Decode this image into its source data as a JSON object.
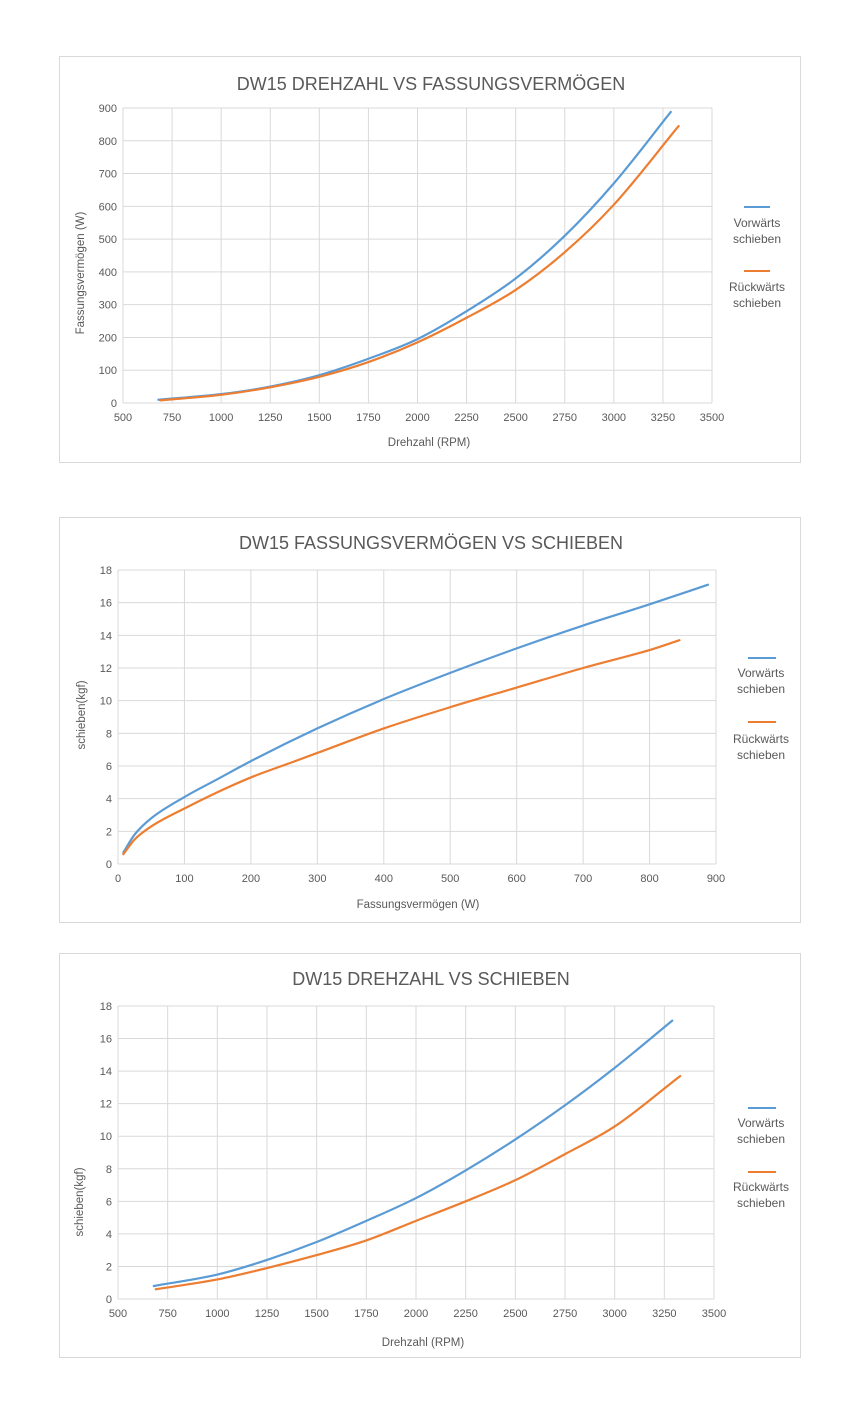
{
  "charts": [
    {
      "title": "DW15 DREHZAHL VS FASSUNGSVERMÖGEN",
      "xlabel": "Drehzahl (RPM)",
      "ylabel": "Fassungsvermögen (W)",
      "legend": [
        {
          "line1": "Vorwärts",
          "line2": "schieben"
        },
        {
          "line1": "Rückwärts",
          "line2": "schieben"
        }
      ]
    },
    {
      "title": "DW15 FASSUNGSVERMÖGEN VS SCHIEBEN",
      "xlabel": "Fassungsvermögen (W)",
      "ylabel": "schieben(kgf)",
      "legend": [
        {
          "line1": "Vorwärts",
          "line2": "schieben"
        },
        {
          "line1": "Rückwärts",
          "line2": "schieben"
        }
      ]
    },
    {
      "title": "DW15 DREHZAHL VS SCHIEBEN",
      "xlabel": "Drehzahl (RPM)",
      "ylabel": "schieben(kgf)",
      "legend": [
        {
          "line1": "Vorwärts",
          "line2": "schieben"
        },
        {
          "line1": "Rückwärts",
          "line2": "schieben"
        }
      ]
    }
  ],
  "chart_data": [
    {
      "type": "line",
      "title": "DW15 DREHZAHL VS FASSUNGSVERMÖGEN",
      "xlabel": "Drehzahl (RPM)",
      "ylabel": "Fassungsvermögen (W)",
      "xlim": [
        500,
        3500
      ],
      "ylim": [
        0,
        900
      ],
      "xticks": [
        500,
        750,
        1000,
        1250,
        1500,
        1750,
        2000,
        2250,
        2500,
        2750,
        3000,
        3250,
        3500
      ],
      "yticks": [
        0,
        100,
        200,
        300,
        400,
        500,
        600,
        700,
        800,
        900
      ],
      "grid": true,
      "legend_position": "right",
      "series": [
        {
          "name": "Vorwärts schieben",
          "color": "#5b9bd5",
          "x": [
            680,
            1000,
            1250,
            1500,
            1750,
            2000,
            2250,
            2500,
            2750,
            3000,
            3290
          ],
          "y": [
            10,
            27,
            50,
            85,
            135,
            195,
            280,
            380,
            510,
            670,
            888
          ]
        },
        {
          "name": "Rückwärts schieben",
          "color": "#ed7d31",
          "x": [
            690,
            1000,
            1250,
            1500,
            1750,
            2000,
            2250,
            2500,
            2750,
            3000,
            3330
          ],
          "y": [
            8,
            25,
            48,
            80,
            125,
            185,
            260,
            345,
            460,
            605,
            845
          ]
        }
      ]
    },
    {
      "type": "line",
      "title": "DW15 FASSUNGSVERMÖGEN VS SCHIEBEN",
      "xlabel": "Fassungsvermögen (W)",
      "ylabel": "schieben(kgf)",
      "xlim": [
        0,
        900
      ],
      "ylim": [
        0,
        18
      ],
      "xticks": [
        0,
        100,
        200,
        300,
        400,
        500,
        600,
        700,
        800,
        900
      ],
      "yticks": [
        0,
        2,
        4,
        6,
        8,
        10,
        12,
        14,
        16,
        18
      ],
      "grid": true,
      "legend_position": "right",
      "series": [
        {
          "name": "Vorwärts schieben",
          "color": "#5b9bd5",
          "x": [
            8,
            25,
            50,
            100,
            150,
            200,
            300,
            400,
            500,
            600,
            700,
            800,
            888
          ],
          "y": [
            0.7,
            1.8,
            2.8,
            4.1,
            5.2,
            6.3,
            8.3,
            10.1,
            11.7,
            13.2,
            14.6,
            15.9,
            17.1
          ]
        },
        {
          "name": "Rückwärts schieben",
          "color": "#ed7d31",
          "x": [
            8,
            25,
            50,
            100,
            150,
            200,
            260,
            300,
            400,
            500,
            600,
            700,
            800,
            845
          ],
          "y": [
            0.6,
            1.5,
            2.3,
            3.4,
            4.4,
            5.3,
            6.2,
            6.8,
            8.3,
            9.6,
            10.8,
            12.0,
            13.1,
            13.7
          ]
        }
      ]
    },
    {
      "type": "line",
      "title": "DW15 DREHZAHL VS SCHIEBEN",
      "xlabel": "Drehzahl (RPM)",
      "ylabel": "schieben(kgf)",
      "xlim": [
        500,
        3500
      ],
      "ylim": [
        0,
        18
      ],
      "xticks": [
        500,
        750,
        1000,
        1250,
        1500,
        1750,
        2000,
        2250,
        2500,
        2750,
        3000,
        3250,
        3500
      ],
      "yticks": [
        0,
        2,
        4,
        6,
        8,
        10,
        12,
        14,
        16,
        18
      ],
      "grid": true,
      "legend_position": "right",
      "series": [
        {
          "name": "Vorwärts schieben",
          "color": "#5b9bd5",
          "x": [
            680,
            1000,
            1250,
            1500,
            1750,
            2000,
            2250,
            2500,
            2750,
            3000,
            3290
          ],
          "y": [
            0.8,
            1.5,
            2.4,
            3.5,
            4.8,
            6.2,
            7.9,
            9.8,
            11.9,
            14.2,
            17.1
          ]
        },
        {
          "name": "Rückwärts schieben",
          "color": "#ed7d31",
          "x": [
            690,
            1000,
            1250,
            1500,
            1750,
            2000,
            2250,
            2500,
            2750,
            3000,
            3330
          ],
          "y": [
            0.6,
            1.2,
            1.9,
            2.7,
            3.6,
            4.8,
            6.0,
            7.3,
            8.9,
            10.6,
            13.7
          ]
        }
      ]
    }
  ]
}
